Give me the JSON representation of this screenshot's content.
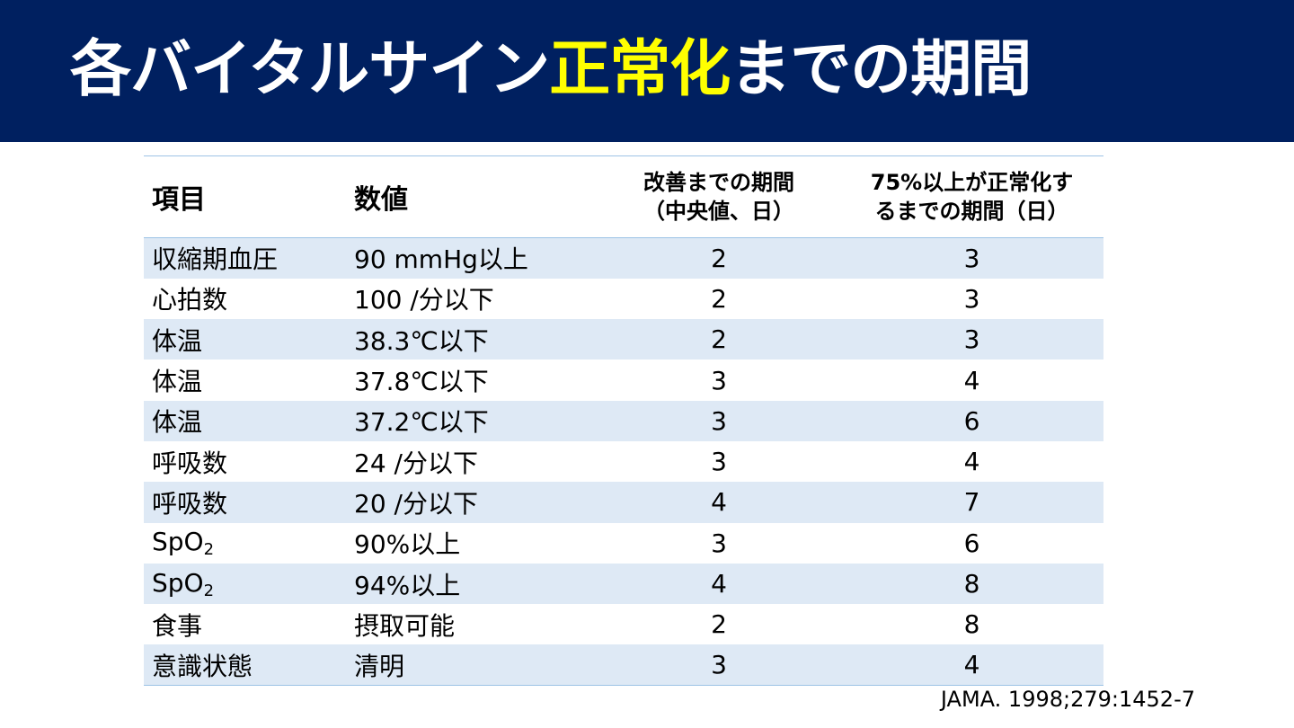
{
  "title": {
    "part1": "各バイタルサイン",
    "highlight": "正常化",
    "part2": "までの期間"
  },
  "colors": {
    "title_band": "#002060",
    "highlight": "#ffff00",
    "row_band": "#dee9f5",
    "rule": "#9dc3e6"
  },
  "table": {
    "headers": {
      "item": "項目",
      "value": "数値",
      "median_line1": "改善までの期間",
      "median_line2": "（中央値、日）",
      "p75_line1": "75%以上が正常化す",
      "p75_line2": "るまでの期間（日）"
    },
    "rows": [
      {
        "item": "収縮期血圧",
        "value": "90 mmHg以上",
        "median": "2",
        "p75": "3"
      },
      {
        "item": "心拍数",
        "value": "100 /分以下",
        "median": "2",
        "p75": "3"
      },
      {
        "item": "体温",
        "value": "38.3℃以下",
        "median": "2",
        "p75": "3"
      },
      {
        "item": "体温",
        "value": "37.8℃以下",
        "median": "3",
        "p75": "4"
      },
      {
        "item": "体温",
        "value": "37.2℃以下",
        "median": "3",
        "p75": "6"
      },
      {
        "item": "呼吸数",
        "value": "24 /分以下",
        "median": "3",
        "p75": "4"
      },
      {
        "item": "呼吸数",
        "value": "20 /分以下",
        "median": "4",
        "p75": "7"
      },
      {
        "item": "SpO",
        "item_sub": "2",
        "value": "90%以上",
        "median": "3",
        "p75": "6"
      },
      {
        "item": "SpO",
        "item_sub": "2",
        "value": "94%以上",
        "median": "4",
        "p75": "8"
      },
      {
        "item": "食事",
        "value": "摂取可能",
        "median": "2",
        "p75": "8"
      },
      {
        "item": "意識状態",
        "value": "清明",
        "median": "3",
        "p75": "4"
      }
    ]
  },
  "citation": "JAMA. 1998;279:1452-7"
}
